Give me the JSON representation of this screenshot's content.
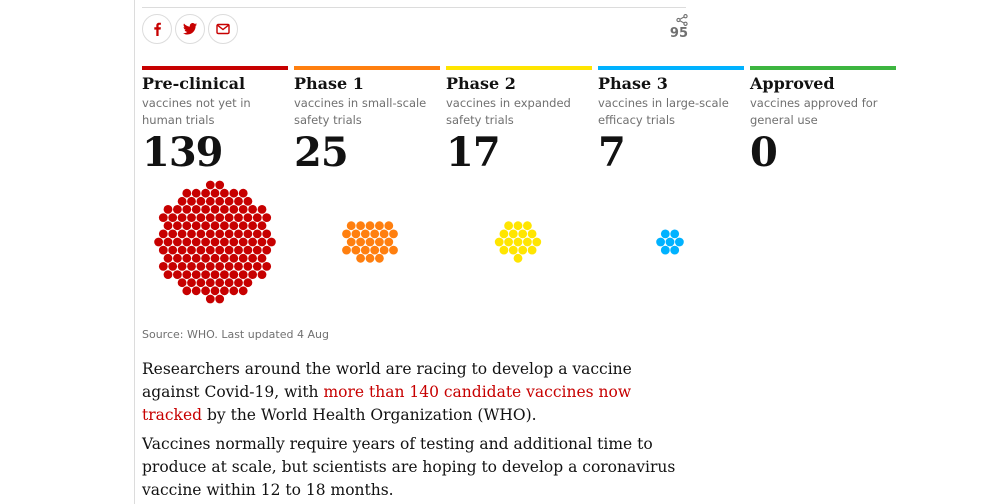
{
  "share": {
    "facebook_icon": "facebook-icon",
    "twitter_icon": "twitter-icon",
    "email_icon": "email-icon",
    "share_icon": "share-icon",
    "count": "95"
  },
  "colors": {
    "preclinical": "#c70000",
    "phase1": "#ff7f0f",
    "phase2": "#ffe500",
    "phase3": "#00b2ff",
    "approved": "#3db540",
    "link": "#c70000"
  },
  "stages": [
    {
      "name": "Pre-clinical",
      "desc": "vaccines not yet in human trials",
      "count": "139"
    },
    {
      "name": "Phase 1",
      "desc": "vaccines in small-scale safety trials",
      "count": "25"
    },
    {
      "name": "Phase 2",
      "desc": "vaccines in expanded safety trials",
      "count": "17"
    },
    {
      "name": "Phase 3",
      "desc": "vaccines in large-scale efficacy trials",
      "count": "7"
    },
    {
      "name": "Approved",
      "desc": "vaccines approved for general use",
      "count": "0"
    }
  ],
  "chart_data": {
    "type": "bar",
    "categories": [
      "Pre-clinical",
      "Phase 1",
      "Phase 2",
      "Phase 3",
      "Approved"
    ],
    "values": [
      139,
      25,
      17,
      7,
      0
    ]
  },
  "source": "Source: WHO. Last updated 4 Aug",
  "body": {
    "p1_before": "Researchers around the world are racing to develop a vaccine against Covid-19, with ",
    "p1_link": "more than 140 candidate vaccines now tracked",
    "p1_after": " by the World Health Organization (WHO).",
    "p2": "Vaccines normally require years of testing and additional time to produce at scale, but scientists are hoping to develop a coronavirus vaccine within 12 to 18 months."
  }
}
